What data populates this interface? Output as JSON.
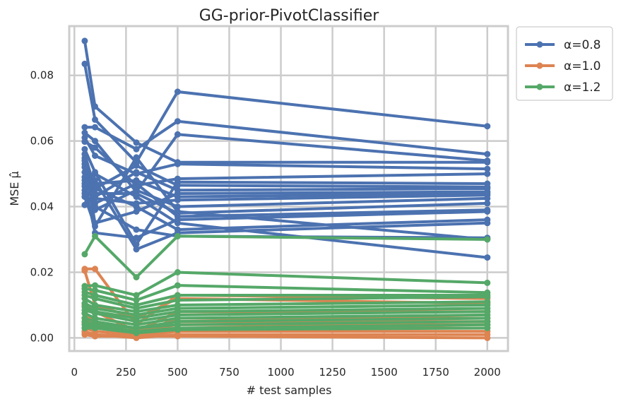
{
  "chart_data": {
    "type": "line",
    "title": "GG-prior-PivotClassifier",
    "xlabel": "# test samples",
    "ylabel": "MSE μ̂",
    "xlim": [
      -25,
      2100
    ],
    "ylim": [
      -0.004,
      0.095
    ],
    "xticks": [
      0,
      250,
      500,
      750,
      1000,
      1250,
      1500,
      1750,
      2000
    ],
    "yticks": [
      0.0,
      0.02,
      0.04,
      0.06,
      0.08
    ],
    "ytick_labels": [
      "0.00",
      "0.02",
      "0.04",
      "0.06",
      "0.08"
    ],
    "grid": true,
    "legend_position": "outside-top-right",
    "x": [
      50,
      100,
      300,
      500,
      2000
    ],
    "series": [
      {
        "name": "α=0.8",
        "color": "#4c72b0",
        "lines": [
          [
            0.0905,
            0.0705,
            0.0595,
            0.0535,
            0.0535
          ],
          [
            0.0835,
            0.0665,
            0.0535,
            0.075,
            0.0645
          ],
          [
            0.0642,
            0.0642,
            0.0575,
            0.066,
            0.056
          ],
          [
            0.0625,
            0.06,
            0.0445,
            0.062,
            0.054
          ],
          [
            0.061,
            0.0555,
            0.05,
            0.053,
            0.0515
          ],
          [
            0.0598,
            0.058,
            0.0465,
            0.0485,
            0.05
          ],
          [
            0.0575,
            0.0505,
            0.0285,
            0.0475,
            0.047
          ],
          [
            0.056,
            0.0455,
            0.0525,
            0.0465,
            0.046
          ],
          [
            0.0548,
            0.043,
            0.0505,
            0.045,
            0.0455
          ],
          [
            0.054,
            0.035,
            0.0385,
            0.044,
            0.0445
          ],
          [
            0.053,
            0.047,
            0.048,
            0.043,
            0.044
          ],
          [
            0.052,
            0.0425,
            0.041,
            0.042,
            0.0435
          ],
          [
            0.0505,
            0.039,
            0.045,
            0.04,
            0.0425
          ],
          [
            0.049,
            0.044,
            0.044,
            0.038,
            0.041
          ],
          [
            0.048,
            0.041,
            0.047,
            0.037,
            0.039
          ],
          [
            0.047,
            0.032,
            0.0305,
            0.036,
            0.0385
          ],
          [
            0.0462,
            0.0455,
            0.04,
            0.033,
            0.036
          ],
          [
            0.045,
            0.048,
            0.027,
            0.032,
            0.035
          ],
          [
            0.044,
            0.04,
            0.033,
            0.031,
            0.0305
          ],
          [
            0.043,
            0.034,
            0.055,
            0.0385,
            0.03
          ],
          [
            0.0405,
            0.05,
            0.043,
            0.035,
            0.0245
          ]
        ]
      },
      {
        "name": "α=1.0",
        "color": "#dd8452",
        "lines": [
          [
            0.021,
            0.021,
            0.004,
            0.013,
            0.012
          ],
          [
            0.0205,
            0.01,
            0.006,
            0.012,
            0.0105
          ],
          [
            0.01,
            0.008,
            0.002,
            0.008,
            0.008
          ],
          [
            0.0075,
            0.005,
            0.001,
            0.006,
            0.006
          ],
          [
            0.006,
            0.004,
            0.003,
            0.005,
            0.005
          ],
          [
            0.0045,
            0.003,
            0.002,
            0.004,
            0.004
          ],
          [
            0.003,
            0.002,
            0.001,
            0.003,
            0.003
          ],
          [
            0.002,
            0.001,
            0.0005,
            0.002,
            0.002
          ],
          [
            0.0015,
            0.001,
            0.0,
            0.001,
            0.001
          ],
          [
            0.001,
            0.0005,
            0.0005,
            0.0005,
            0.0
          ]
        ]
      },
      {
        "name": "α=1.2",
        "color": "#55a868",
        "lines": [
          [
            0.0255,
            0.031,
            0.0185,
            0.031,
            0.03
          ],
          [
            0.0158,
            0.016,
            0.013,
            0.02,
            0.0168
          ],
          [
            0.015,
            0.0145,
            0.0115,
            0.016,
            0.0138
          ],
          [
            0.014,
            0.013,
            0.01,
            0.013,
            0.013
          ],
          [
            0.013,
            0.012,
            0.009,
            0.0115,
            0.0125
          ],
          [
            0.012,
            0.01,
            0.008,
            0.01,
            0.011
          ],
          [
            0.0105,
            0.009,
            0.007,
            0.009,
            0.01
          ],
          [
            0.0095,
            0.008,
            0.006,
            0.008,
            0.009
          ],
          [
            0.0085,
            0.0075,
            0.005,
            0.007,
            0.008
          ],
          [
            0.0075,
            0.006,
            0.004,
            0.006,
            0.007
          ],
          [
            0.006,
            0.005,
            0.003,
            0.005,
            0.006
          ],
          [
            0.005,
            0.004,
            0.003,
            0.004,
            0.005
          ],
          [
            0.004,
            0.0035,
            0.002,
            0.003,
            0.004
          ],
          [
            0.003,
            0.003,
            0.0015,
            0.0025,
            0.003
          ]
        ]
      }
    ]
  }
}
